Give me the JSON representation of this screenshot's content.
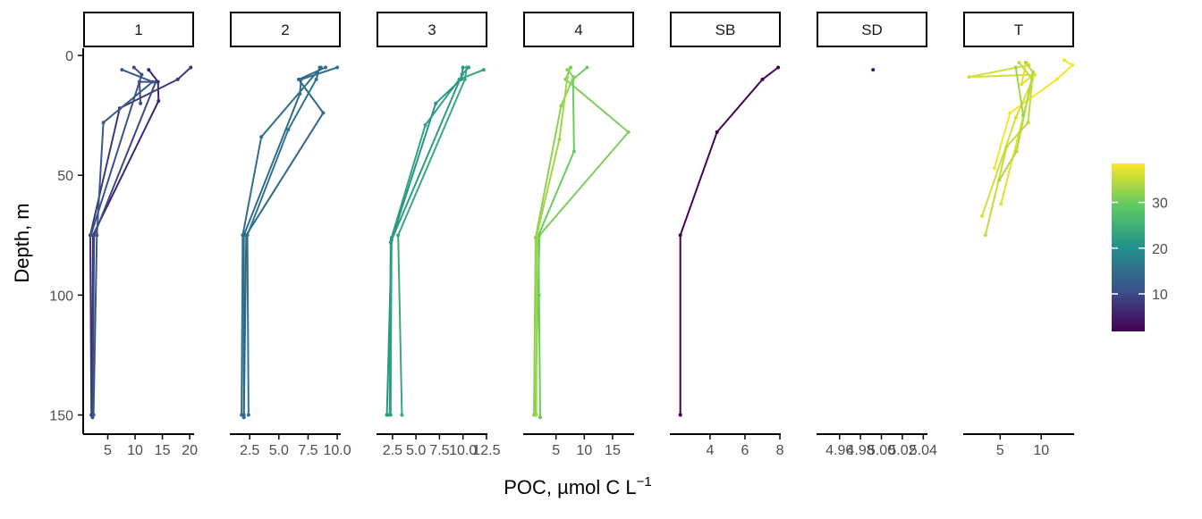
{
  "chart_data": {
    "type": "line",
    "xlabel": "POC, µmol C L",
    "xlabel_superscript": "−1",
    "ylabel": "Depth, m",
    "y_axis": {
      "reversed": true,
      "lim": [
        -3,
        158
      ],
      "ticks": [
        0,
        50,
        100,
        150
      ]
    },
    "colorbar": {
      "lim": [
        1.8,
        38.5
      ],
      "ticks": [
        10,
        20,
        30
      ],
      "colormap": "viridis",
      "stops": [
        "#440154",
        "#3b528b",
        "#21918c",
        "#5ec962",
        "#fde725"
      ]
    },
    "panels": [
      {
        "strip": "1",
        "xlim": [
          0.5,
          20.8
        ],
        "xticks": [
          5,
          10,
          15,
          20
        ],
        "series": [
          {
            "color_value": 6,
            "points": [
              [
                12.5,
                6
              ],
              [
                14.2,
                11
              ],
              [
                14.3,
                19
              ],
              [
                2.3,
                75
              ],
              [
                2.1,
                150
              ]
            ]
          },
          {
            "color_value": 8,
            "points": [
              [
                20.2,
                5
              ],
              [
                17.8,
                10
              ],
              [
                7.2,
                22
              ],
              [
                1.8,
                75
              ],
              [
                2.0,
                150
              ]
            ]
          },
          {
            "color_value": 10,
            "points": [
              [
                11.0,
                20
              ],
              [
                10.8,
                11
              ],
              [
                13.8,
                11
              ],
              [
                2.5,
                75
              ],
              [
                2.2,
                151
              ]
            ]
          },
          {
            "color_value": 12,
            "points": [
              [
                7.6,
                6
              ],
              [
                13.2,
                11
              ],
              [
                4.2,
                28
              ],
              [
                3.0,
                75
              ],
              [
                2.4,
                150
              ]
            ]
          },
          {
            "color_value": 11,
            "points": [
              [
                9.8,
                5
              ],
              [
                11.2,
                8
              ],
              [
                1.9,
                75
              ]
            ]
          }
        ]
      },
      {
        "strip": "2",
        "xlim": [
          0.8,
          10.3
        ],
        "xticks": [
          2.5,
          5.0,
          7.5,
          10.0
        ],
        "series": [
          {
            "color_value": 15,
            "points": [
              [
                10.0,
                5
              ],
              [
                6.9,
                10
              ],
              [
                6.8,
                16
              ],
              [
                2.0,
                75
              ],
              [
                2.0,
                150
              ]
            ]
          },
          {
            "color_value": 14,
            "points": [
              [
                9.0,
                5
              ],
              [
                6.7,
                10
              ],
              [
                8.8,
                24
              ],
              [
                2.2,
                75
              ],
              [
                2.0,
                151
              ]
            ]
          },
          {
            "color_value": 16,
            "points": [
              [
                8.5,
                5
              ],
              [
                8.2,
                10
              ],
              [
                5.8,
                31
              ],
              [
                2.3,
                75
              ],
              [
                2.4,
                150
              ]
            ]
          },
          {
            "color_value": 15,
            "points": [
              [
                8.6,
                5
              ],
              [
                3.5,
                34
              ],
              [
                1.9,
                75
              ],
              [
                1.8,
                150
              ]
            ]
          }
        ]
      },
      {
        "strip": "3",
        "xlim": [
          0.8,
          12.6
        ],
        "xticks": [
          2.5,
          5.0,
          7.5,
          10.0,
          12.5
        ],
        "series": [
          {
            "color_value": 23,
            "points": [
              [
                12.2,
                6
              ],
              [
                9.6,
                10
              ],
              [
                6.0,
                29
              ],
              [
                2.4,
                76
              ],
              [
                2.3,
                150
              ]
            ]
          },
          {
            "color_value": 21,
            "points": [
              [
                10.0,
                5
              ],
              [
                9.8,
                10
              ],
              [
                7.1,
                20
              ],
              [
                2.4,
                77
              ],
              [
                1.9,
                150
              ]
            ]
          },
          {
            "color_value": 24,
            "points": [
              [
                10.4,
                5
              ],
              [
                10.2,
                10
              ],
              [
                3.1,
                75
              ],
              [
                3.5,
                150
              ]
            ]
          },
          {
            "color_value": 22,
            "points": [
              [
                10.6,
                5
              ],
              [
                9.9,
                8
              ],
              [
                2.3,
                78
              ],
              [
                2.2,
                150
              ]
            ]
          }
        ]
      },
      {
        "strip": "4",
        "xlim": [
          -0.8,
          18.8
        ],
        "xticks": [
          5,
          10,
          15
        ],
        "series": [
          {
            "color_value": 31,
            "points": [
              [
                7.6,
                5
              ],
              [
                6.7,
                10
              ],
              [
                17.8,
                32
              ],
              [
                2.1,
                75
              ],
              [
                1.3,
                150
              ]
            ]
          },
          {
            "color_value": 30,
            "points": [
              [
                10.5,
                5
              ],
              [
                8.0,
                10
              ],
              [
                8.2,
                40
              ],
              [
                1.9,
                75
              ],
              [
                2.0,
                100
              ],
              [
                2.2,
                151
              ]
            ]
          },
          {
            "color_value": 32,
            "points": [
              [
                7.0,
                6
              ],
              [
                8.1,
                9
              ],
              [
                5.9,
                21
              ],
              [
                1.4,
                76
              ],
              [
                1.1,
                150
              ]
            ]
          },
          {
            "color_value": 33,
            "points": [
              [
                7.0,
                9
              ],
              [
                5.6,
                35
              ],
              [
                1.6,
                75
              ],
              [
                1.5,
                150
              ]
            ]
          }
        ]
      },
      {
        "strip": "SB",
        "xlim": [
          1.7,
          8.05
        ],
        "xticks": [
          4,
          6,
          8
        ],
        "series": [
          {
            "color_value": 2,
            "points": [
              [
                7.9,
                5
              ],
              [
                7.0,
                10
              ],
              [
                4.4,
                32
              ],
              [
                2.3,
                75
              ],
              [
                2.3,
                150
              ]
            ]
          }
        ]
      },
      {
        "strip": "SD",
        "xlim": [
          4.938,
          5.044
        ],
        "xticks": [
          4.96,
          4.98,
          5.0,
          5.02,
          5.04
        ],
        "tick_labels": [
          "4.96",
          "4.98",
          "5.00",
          "5.02",
          "5.04"
        ],
        "series": [
          {
            "color_value": 4,
            "points": [
              [
                4.992,
                6
              ]
            ]
          }
        ]
      },
      {
        "strip": "T",
        "xlim": [
          0.5,
          14.0
        ],
        "xticks": [
          5,
          10
        ],
        "series": [
          {
            "color_value": 38,
            "points": [
              [
                12.8,
                2
              ],
              [
                13.8,
                4
              ],
              [
                11.9,
                10
              ],
              [
                6.2,
                24
              ],
              [
                4.3,
                47
              ]
            ]
          },
          {
            "color_value": 36,
            "points": [
              [
                8.5,
                4
              ],
              [
                1.2,
                9
              ],
              [
                9.2,
                8
              ],
              [
                6.9,
                26
              ],
              [
                2.8,
                67
              ]
            ]
          },
          {
            "color_value": 37,
            "points": [
              [
                8.2,
                3
              ],
              [
                7.6,
                12
              ],
              [
                9.1,
                8
              ],
              [
                5.1,
                62
              ]
            ]
          },
          {
            "color_value": 35,
            "points": [
              [
                7.3,
                3
              ],
              [
                8.9,
                10
              ],
              [
                8.4,
                28
              ],
              [
                5.8,
                38
              ],
              [
                3.2,
                75
              ]
            ]
          },
          {
            "color_value": 34,
            "points": [
              [
                8.1,
                3
              ],
              [
                9.0,
                7
              ],
              [
                7.0,
                40
              ],
              [
                4.9,
                52
              ]
            ]
          },
          {
            "color_value": 33,
            "points": [
              [
                6.9,
                5
              ],
              [
                7.8,
                25
              ]
            ]
          }
        ]
      }
    ]
  }
}
